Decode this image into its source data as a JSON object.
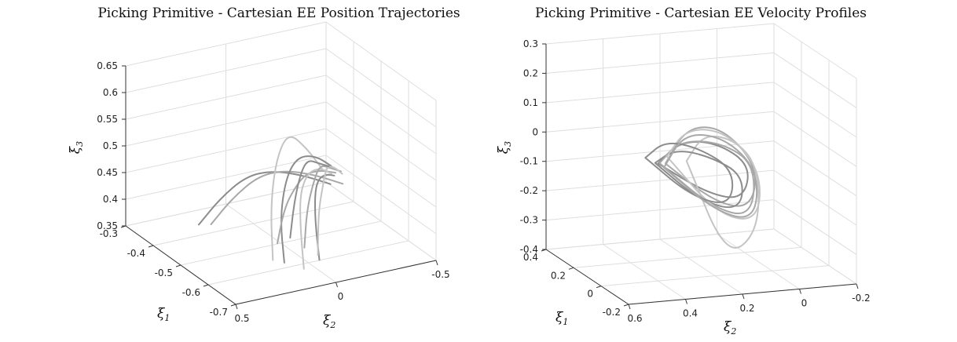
{
  "chart_data": [
    {
      "type": "line3d",
      "title": "Picking Primitive - Cartesian EE Position Trajectories",
      "xlabel": "ξ1",
      "ylabel": "ξ2",
      "zlabel": "ξ3",
      "xlim": [
        -0.7,
        -0.3
      ],
      "ylim": [
        -0.5,
        0.5
      ],
      "zlim": [
        0.35,
        0.65
      ],
      "xticks": [
        "-0.3",
        "-0.4",
        "-0.5",
        "-0.6",
        "-0.7"
      ],
      "yticks": [
        "0.5",
        "0",
        "-0.5"
      ],
      "zticks": [
        "0.35",
        "0.4",
        "0.45",
        "0.5",
        "0.55",
        "0.6",
        "0.65"
      ],
      "grid": true,
      "series_colors": [
        "#8c8c8c",
        "#a8a8a8",
        "#c4c4c4"
      ],
      "series": [
        {
          "x": [
            -0.42,
            -0.44,
            -0.46,
            -0.48,
            -0.5,
            -0.52
          ],
          "y": [
            0.3,
            0.22,
            0.12,
            0.02,
            -0.1,
            -0.22
          ],
          "z": [
            0.38,
            0.43,
            0.47,
            0.48,
            0.47,
            0.45
          ]
        },
        {
          "x": [
            -0.45,
            -0.47,
            -0.49,
            -0.51,
            -0.53,
            -0.55
          ],
          "y": [
            0.28,
            0.2,
            0.1,
            0.0,
            -0.12,
            -0.24
          ],
          "z": [
            0.39,
            0.44,
            0.48,
            0.49,
            0.48,
            0.46
          ]
        },
        {
          "x": [
            -0.58,
            -0.55,
            -0.52,
            -0.49,
            -0.46,
            -0.43
          ],
          "y": [
            0.15,
            0.12,
            0.05,
            -0.05,
            -0.18,
            -0.3
          ],
          "z": [
            0.36,
            0.45,
            0.52,
            0.55,
            0.5,
            0.44
          ]
        },
        {
          "x": [
            -0.6,
            -0.57,
            -0.54,
            -0.51,
            -0.48,
            -0.45
          ],
          "y": [
            0.12,
            0.1,
            0.03,
            -0.07,
            -0.2,
            -0.32
          ],
          "z": [
            0.36,
            0.43,
            0.49,
            0.51,
            0.49,
            0.45
          ]
        },
        {
          "x": [
            -0.56,
            -0.55,
            -0.54,
            -0.52,
            -0.5,
            -0.48
          ],
          "y": [
            0.1,
            0.05,
            -0.02,
            -0.1,
            -0.2,
            -0.3
          ],
          "z": [
            0.38,
            0.44,
            0.47,
            0.48,
            0.47,
            0.45
          ]
        },
        {
          "x": [
            -0.62,
            -0.6,
            -0.57,
            -0.54,
            -0.51,
            -0.48
          ],
          "y": [
            0.05,
            0.04,
            0.0,
            -0.08,
            -0.18,
            -0.28
          ],
          "z": [
            0.35,
            0.42,
            0.47,
            0.49,
            0.48,
            0.45
          ]
        },
        {
          "x": [
            -0.64,
            -0.61,
            -0.58,
            -0.55,
            -0.52,
            -0.49
          ],
          "y": [
            0.0,
            -0.02,
            -0.06,
            -0.12,
            -0.2,
            -0.28
          ],
          "z": [
            0.37,
            0.43,
            0.47,
            0.48,
            0.47,
            0.45
          ]
        },
        {
          "x": [
            -0.6,
            -0.58,
            -0.56,
            -0.54,
            -0.52,
            -0.5
          ],
          "y": [
            0.02,
            -0.02,
            -0.08,
            -0.14,
            -0.22,
            -0.3
          ],
          "z": [
            0.38,
            0.44,
            0.48,
            0.5,
            0.48,
            0.46
          ]
        },
        {
          "x": [
            -0.62,
            -0.6,
            -0.58,
            -0.55,
            -0.52,
            -0.49
          ],
          "y": [
            -0.02,
            -0.05,
            -0.1,
            -0.16,
            -0.24,
            -0.32
          ],
          "z": [
            0.37,
            0.44,
            0.48,
            0.5,
            0.48,
            0.45
          ]
        },
        {
          "x": [
            -0.57,
            -0.55,
            -0.53,
            -0.51,
            -0.49,
            -0.47
          ],
          "y": [
            0.05,
            0.0,
            -0.06,
            -0.12,
            -0.2,
            -0.28
          ],
          "z": [
            0.39,
            0.45,
            0.49,
            0.5,
            0.48,
            0.46
          ]
        }
      ]
    },
    {
      "type": "line3d",
      "title": "Picking Primitive - Cartesian EE Velocity Profiles",
      "xlabel": "ξ1",
      "ylabel": "ξ2",
      "zlabel": "ξ3",
      "xlim": [
        -0.2,
        0.4
      ],
      "ylim": [
        -0.2,
        0.6
      ],
      "zlim": [
        -0.4,
        0.3
      ],
      "xticks": [
        "0.4",
        "0.2",
        "0",
        "-0.2"
      ],
      "yticks": [
        "0.6",
        "0.4",
        "0.2",
        "0",
        "-0.2"
      ],
      "zticks": [
        "-0.4",
        "-0.3",
        "-0.2",
        "-0.1",
        "0",
        "0.1",
        "0.2",
        "0.3"
      ],
      "grid": true,
      "series_colors": [
        "#8c8c8c",
        "#a8a8a8",
        "#c4c4c4"
      ],
      "series": [
        {
          "x": [
            0.0,
            0.05,
            0.1,
            0.05,
            0.0,
            -0.05,
            0.0
          ],
          "y": [
            0.4,
            0.3,
            0.15,
            0.05,
            0.1,
            0.25,
            0.4
          ],
          "z": [
            0.0,
            0.05,
            0.02,
            -0.05,
            -0.15,
            -0.1,
            0.0
          ]
        },
        {
          "x": [
            0.05,
            0.1,
            0.15,
            0.1,
            0.05,
            0.0,
            0.05
          ],
          "y": [
            0.35,
            0.25,
            0.1,
            0.0,
            0.05,
            0.2,
            0.35
          ],
          "z": [
            -0.02,
            0.08,
            0.05,
            -0.08,
            -0.2,
            -0.15,
            -0.02
          ]
        },
        {
          "x": [
            0.0,
            0.08,
            0.15,
            0.2,
            0.1,
            0.02,
            0.0
          ],
          "y": [
            0.3,
            0.2,
            0.05,
            -0.05,
            0.0,
            0.15,
            0.3
          ],
          "z": [
            0.0,
            0.06,
            0.0,
            -0.12,
            -0.3,
            -0.35,
            0.0
          ]
        },
        {
          "x": [
            -0.02,
            0.04,
            0.08,
            0.04,
            -0.02,
            -0.06,
            -0.02
          ],
          "y": [
            0.42,
            0.32,
            0.18,
            0.08,
            0.12,
            0.28,
            0.42
          ],
          "z": [
            0.01,
            0.03,
            -0.02,
            -0.08,
            -0.18,
            -0.12,
            0.01
          ]
        },
        {
          "x": [
            0.03,
            0.09,
            0.12,
            0.08,
            0.02,
            -0.02,
            0.03
          ],
          "y": [
            0.38,
            0.28,
            0.12,
            0.02,
            0.06,
            0.22,
            0.38
          ],
          "z": [
            -0.01,
            0.04,
            0.01,
            -0.06,
            -0.22,
            -0.16,
            -0.01
          ]
        },
        {
          "x": [
            0.06,
            0.12,
            0.16,
            0.12,
            0.06,
            0.02,
            0.06
          ],
          "y": [
            0.34,
            0.24,
            0.08,
            -0.02,
            0.02,
            0.18,
            0.34
          ],
          "z": [
            0.0,
            0.07,
            0.03,
            -0.1,
            -0.25,
            -0.2,
            0.0
          ]
        },
        {
          "x": [
            0.01,
            0.07,
            0.11,
            0.07,
            0.01,
            -0.04,
            0.01
          ],
          "y": [
            0.44,
            0.34,
            0.2,
            0.1,
            0.14,
            0.3,
            0.44
          ],
          "z": [
            0.02,
            0.05,
            0.0,
            -0.07,
            -0.17,
            -0.11,
            0.02
          ]
        },
        {
          "x": [
            0.04,
            0.1,
            0.14,
            0.1,
            0.04,
            0.0,
            0.04
          ],
          "y": [
            0.36,
            0.26,
            0.1,
            0.0,
            0.04,
            0.2,
            0.36
          ],
          "z": [
            -0.03,
            0.06,
            0.02,
            -0.09,
            -0.24,
            -0.18,
            -0.03
          ]
        }
      ]
    }
  ]
}
